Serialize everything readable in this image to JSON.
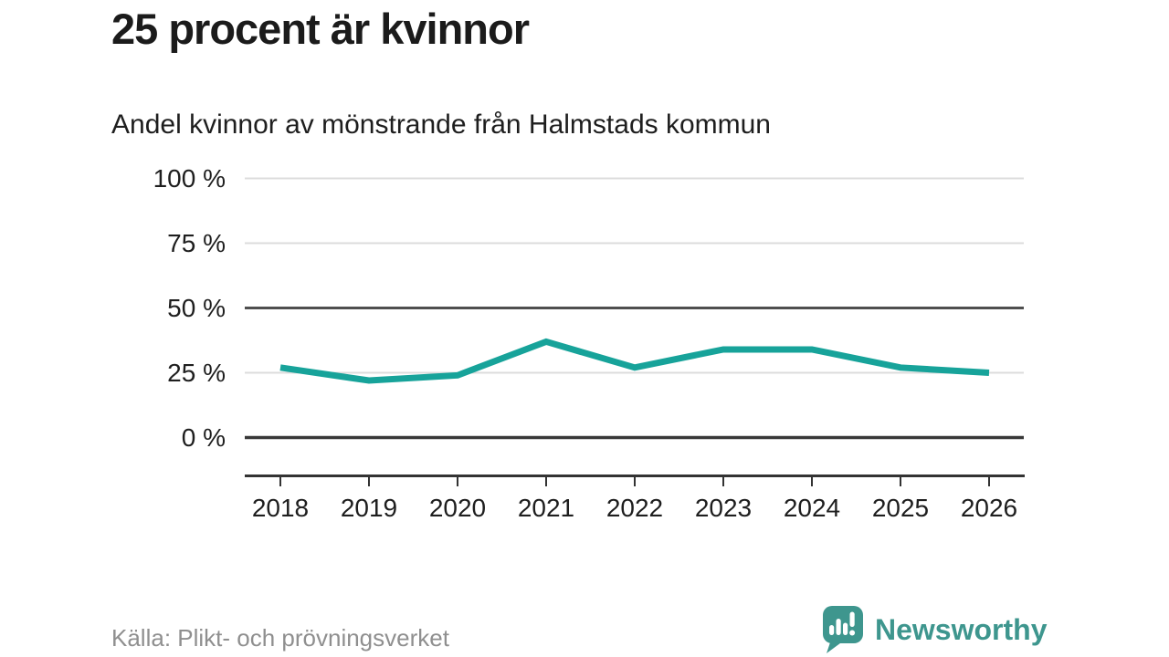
{
  "chart_data": {
    "type": "line",
    "title": "25 procent är kvinnor",
    "subtitle": "Andel kvinnor av mönstrande från Halmstads kommun",
    "source": "Källa: Plikt- och prövningsverket",
    "unit": "%",
    "x": [
      "2018",
      "2019",
      "2020",
      "2021",
      "2022",
      "2023",
      "2024",
      "2025",
      "2026"
    ],
    "series": [
      {
        "name": "Andel kvinnor av mönstrande",
        "values": [
          27,
          22,
          24,
          37,
          27,
          34,
          34,
          27,
          25
        ]
      }
    ],
    "ylim": [
      0,
      100
    ],
    "yticks": [
      {
        "value": 100,
        "label": "100 %"
      },
      {
        "value": 75,
        "label": "75 %"
      },
      {
        "value": 50,
        "label": "50 %"
      },
      {
        "value": 25,
        "label": "25 %"
      },
      {
        "value": 0,
        "label": "0 %"
      }
    ],
    "grid": "horizontal",
    "legend": "none"
  },
  "colors": {
    "line": "#17a39a",
    "grid_light": "#dcdcdc",
    "grid_strong": "#4f4f4f",
    "grid_zero": "#383838",
    "axis": "#333333",
    "text": "#1e1e1e",
    "muted_text": "#8f8f8f",
    "brand_teal": "#3e968e"
  },
  "branding": {
    "logo_text": "Newsworthy",
    "logo_icon": "bar-chart-speech-bubble-icon"
  }
}
